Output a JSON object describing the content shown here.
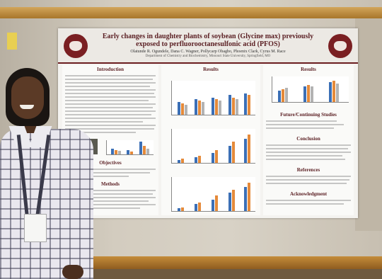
{
  "poster": {
    "title": "Early changes in daughter plants of soybean (Glycine max) previously exposed to perfluorooctanesulfonic acid (PFOS)",
    "authors": "Olatunde R. Ogundele, Dana C. Wagner, Pollycarp Obagbo, Phoenix Clark, Cyrus M. Race",
    "affiliation": "Department of Chemistry and Biochemistry, Missouri State University, Springfield, MO",
    "sections": {
      "introduction": "Introduction",
      "objectives": "Objectives",
      "methods": "Methods",
      "results_mid": "Results",
      "results_right": "Results",
      "future": "Future/Continuing Studies",
      "conclusion": "Conclusion",
      "references": "References",
      "acknowledgment": "Acknowledgment"
    }
  }
}
